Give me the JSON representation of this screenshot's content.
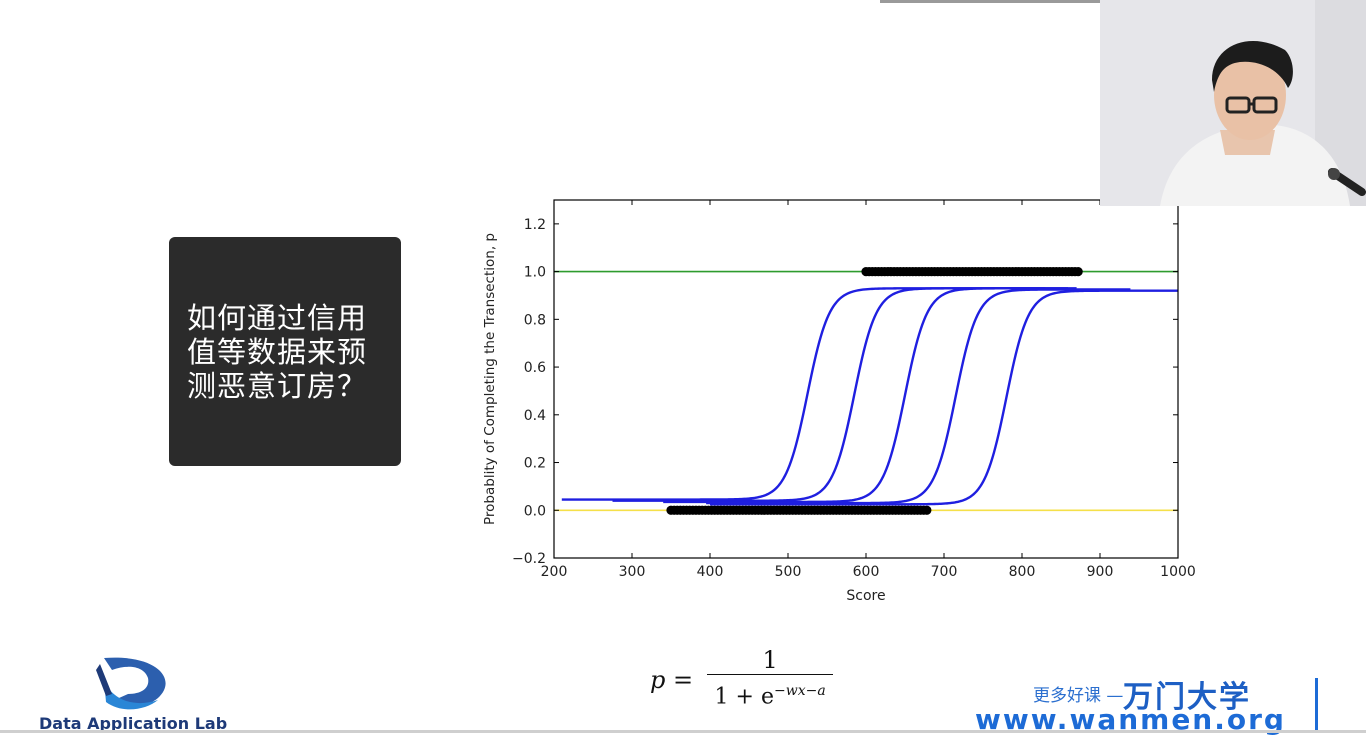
{
  "slide": {
    "title": "如何通过信用值等数据来预测恶意订房？"
  },
  "formula": {
    "lhs": "p =",
    "numerator": "1",
    "denominator_base": "1 + e",
    "denominator_exp": "−wx−a"
  },
  "branding": {
    "lab_name": "Data Application Lab",
    "tagline": "更多好课 —",
    "brand": "万门大学",
    "url": "www.wanmen.org"
  },
  "chart_data": {
    "type": "line",
    "xlabel": "Score",
    "ylabel": "Probablity of Completing the Transection, p",
    "xlim": [
      200,
      1000
    ],
    "ylim": [
      -0.2,
      1.3
    ],
    "xticks": [
      200,
      300,
      400,
      500,
      600,
      700,
      800,
      900,
      1000
    ],
    "yticks": [
      -0.2,
      0.0,
      0.2,
      0.4,
      0.6,
      0.8,
      1.0,
      1.2
    ],
    "grid": false,
    "reference_lines": [
      {
        "y": 1.0,
        "color": "#2e9b2e"
      },
      {
        "y": 0.0,
        "color": "#f5e04a"
      }
    ],
    "curves": [
      {
        "center": 525,
        "x_range": [
          210,
          830
        ],
        "low": 0.045,
        "high": 0.93,
        "width": 14
      },
      {
        "center": 585,
        "x_range": [
          275,
          860
        ],
        "low": 0.04,
        "high": 0.93,
        "width": 14
      },
      {
        "center": 650,
        "x_range": [
          340,
          870
        ],
        "low": 0.035,
        "high": 0.93,
        "width": 14
      },
      {
        "center": 715,
        "x_range": [
          395,
          940
        ],
        "low": 0.03,
        "high": 0.925,
        "width": 14
      },
      {
        "center": 780,
        "x_range": [
          400,
          1000
        ],
        "low": 0.025,
        "high": 0.92,
        "width": 14
      }
    ],
    "curve_color": "#1f1fe0",
    "point_groups": [
      {
        "y": 1.0,
        "x_range": [
          600,
          875
        ]
      },
      {
        "y": 0.0,
        "x_range": [
          350,
          680
        ]
      }
    ],
    "point_color": "#000000"
  }
}
